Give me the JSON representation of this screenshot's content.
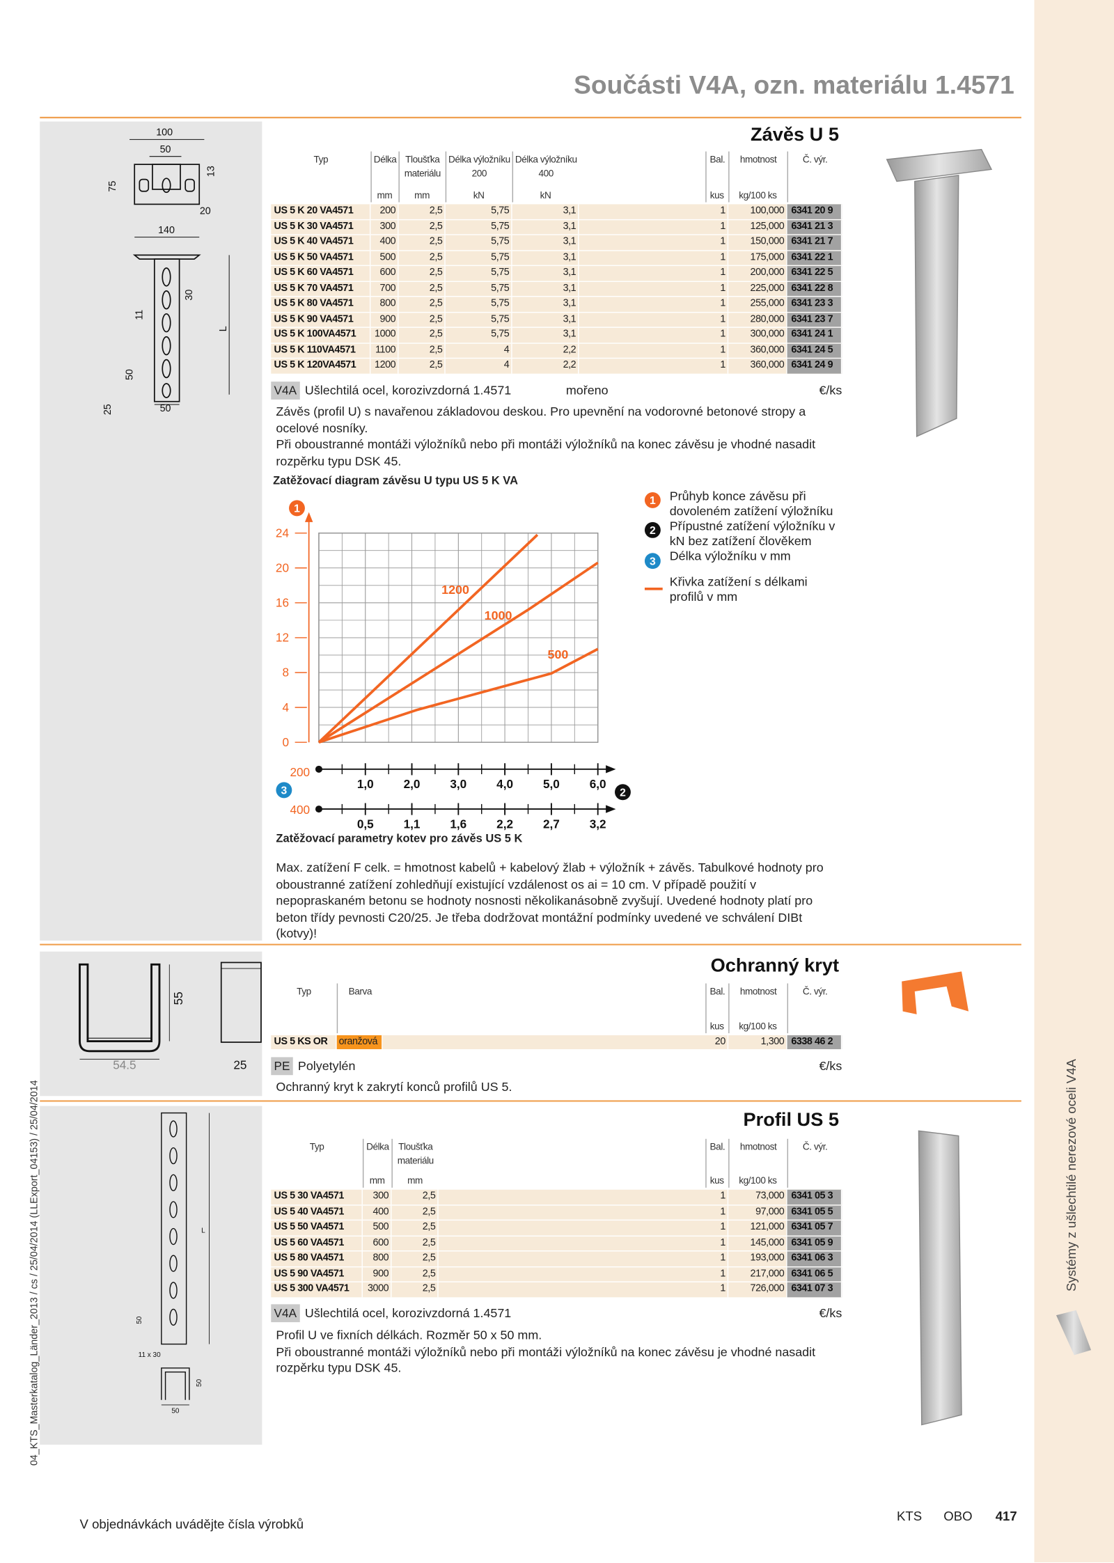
{
  "header": {
    "title": "Součásti V4A, ozn. materiálu 1.4571"
  },
  "sections": [
    {
      "title": "Závěs U 5",
      "table": {
        "headers": [
          "Typ",
          "Délka",
          "Tloušťka materiálu",
          "Délka výložníku 200",
          "Délka výložníku 400",
          "Bal.",
          "hmotnost",
          "Č. výr."
        ],
        "units": [
          null,
          "mm",
          "mm",
          "kN",
          "kN",
          "kus",
          "kg/100 ks",
          null
        ],
        "rows": [
          [
            "US 5 K 20 VA4571",
            "200",
            "2,5",
            "5,75",
            "3,1",
            "1",
            "100,000",
            "6341 20 9"
          ],
          [
            "US 5 K 30 VA4571",
            "300",
            "2,5",
            "5,75",
            "3,1",
            "1",
            "125,000",
            "6341 21 3"
          ],
          [
            "US 5 K 40 VA4571",
            "400",
            "2,5",
            "5,75",
            "3,1",
            "1",
            "150,000",
            "6341 21 7"
          ],
          [
            "US 5 K 50 VA4571",
            "500",
            "2,5",
            "5,75",
            "3,1",
            "1",
            "175,000",
            "6341 22 1"
          ],
          [
            "US 5 K 60 VA4571",
            "600",
            "2,5",
            "5,75",
            "3,1",
            "1",
            "200,000",
            "6341 22 5"
          ],
          [
            "US 5 K 70 VA4571",
            "700",
            "2,5",
            "5,75",
            "3,1",
            "1",
            "225,000",
            "6341 22 8"
          ],
          [
            "US 5 K 80 VA4571",
            "800",
            "2,5",
            "5,75",
            "3,1",
            "1",
            "255,000",
            "6341 23 3"
          ],
          [
            "US 5 K 90 VA4571",
            "900",
            "2,5",
            "5,75",
            "3,1",
            "1",
            "280,000",
            "6341 23 7"
          ],
          [
            "US 5 K 100VA4571",
            "1000",
            "2,5",
            "5,75",
            "3,1",
            "1",
            "300,000",
            "6341 24 1"
          ],
          [
            "US 5 K 110VA4571",
            "1100",
            "2,5",
            "4",
            "2,2",
            "1",
            "360,000",
            "6341 24 5"
          ],
          [
            "US 5 K 120VA4571",
            "1200",
            "2,5",
            "4",
            "2,2",
            "1",
            "360,000",
            "6341 24 9"
          ]
        ]
      },
      "material": {
        "code": "V4A",
        "text": "Ušlechtilá ocel, korozivzdorná 1.4571",
        "finish": "mořeno",
        "unit": "€/ks"
      },
      "description": [
        "Závěs (profil U) s navařenou základovou deskou. Pro upevnění na vodorovné betonové stropy a ocelové nosníky.",
        "Při oboustranné montáži výložníků nebo při montáži výložníků na konec závěsu je vhodné nasadit rozpěrku typu DSK 45."
      ],
      "diagram": {
        "type": "line",
        "title": "Zatěžovací diagram závěsu U typu US 5 K VA",
        "caption": "Zatěžovací parametry kotev pro závěs US 5 K",
        "markers": [
          "1",
          "2",
          "3"
        ],
        "legend": [
          "Průhyb konce závěsu při dovoleném zatížení výložníku",
          "Přípustné zatížení výložníku v kN bez zatížení člověkem",
          "Délka výložníku v mm",
          "Křivka zatížení s délkami profilů v mm"
        ],
        "ylim": [
          0,
          24
        ],
        "yticks": [
          0,
          4,
          8,
          12,
          16,
          20,
          24
        ],
        "xlim": [
          0,
          6
        ],
        "xticks": [
          {
            "value": 1,
            "label": "1,0"
          },
          {
            "value": 2,
            "label": "2,0"
          },
          {
            "value": 3,
            "label": "3,0"
          },
          {
            "value": 4,
            "label": "4,0"
          },
          {
            "value": 5,
            "label": "5,0"
          },
          {
            "value": 6,
            "label": "6,0"
          }
        ],
        "x_axis_labels": [
          "200",
          "400"
        ],
        "x2ticks": [
          {
            "value": 0.5,
            "label": "0,5"
          },
          {
            "value": 1.1,
            "label": "1,1"
          },
          {
            "value": 1.6,
            "label": "1,6"
          },
          {
            "value": 2.2,
            "label": "2,2"
          },
          {
            "value": 2.7,
            "label": "2,7"
          },
          {
            "value": 3.2,
            "label": "3,2"
          }
        ],
        "color": "#f26522",
        "grid": true,
        "series": [
          {
            "name": "1200",
            "x": [
              0,
              4.7
            ],
            "values": [
              0,
              23.8
            ]
          },
          {
            "name": "1000",
            "x": [
              0,
              4.5,
              6
            ],
            "values": [
              0,
              15.2,
              20.6
            ]
          },
          {
            "name": "500",
            "x": [
              0,
              2.1,
              5,
              6
            ],
            "values": [
              0,
              3.7,
              7.9,
              10.7
            ]
          }
        ]
      },
      "notes": "Max. zatížení F celk. = hmotnost kabelů + kabelový žlab + výložník + závěs. Tabulkové hodnoty pro oboustranné zatížení zohledňují existující vzdálenost os ai = 10 cm. V případě použití v nepopraskaném betonu se hodnoty nosnosti několikanásobně zvyšují. Uvedené hodnoty platí pro beton třídy pevnosti C20/25. Je třeba dodržovat montážní podmínky uvedené ve schválení DIBt (kotvy)!",
      "drawing_labels": [
        "100",
        "50",
        "75",
        "13",
        "20",
        "140",
        "30",
        "11",
        "L",
        "50",
        "25",
        "50"
      ]
    },
    {
      "title": "Ochranný kryt",
      "table": {
        "headers": [
          "Typ",
          "Barva",
          "Bal.",
          "hmotnost",
          "Č. výr."
        ],
        "units": [
          null,
          null,
          "kus",
          "kg/100 ks",
          null
        ],
        "rows": [
          [
            "US 5 KS OR",
            "oranžová",
            "20",
            "1,300",
            "6338 46 2"
          ]
        ]
      },
      "material": {
        "code": "PE",
        "text": "Polyetylén",
        "unit": "€/ks"
      },
      "description": [
        "Ochranný kryt k zakrytí konců profilů US 5."
      ],
      "drawing_labels": [
        "55",
        "54.5",
        "25"
      ]
    },
    {
      "title": "Profil US 5",
      "table": {
        "headers": [
          "Typ",
          "Délka",
          "Tloušťka materiálu",
          "Bal.",
          "hmotnost",
          "Č. výr."
        ],
        "units": [
          null,
          "mm",
          "mm",
          "kus",
          "kg/100 ks",
          null
        ],
        "rows": [
          [
            "US 5 30 VA4571",
            "300",
            "2,5",
            "1",
            "73,000",
            "6341 05 3"
          ],
          [
            "US 5 40 VA4571",
            "400",
            "2,5",
            "1",
            "97,000",
            "6341 05 5"
          ],
          [
            "US 5 50 VA4571",
            "500",
            "2,5",
            "1",
            "121,000",
            "6341 05 7"
          ],
          [
            "US 5 60 VA4571",
            "600",
            "2,5",
            "1",
            "145,000",
            "6341 05 9"
          ],
          [
            "US 5 80 VA4571",
            "800",
            "2,5",
            "1",
            "193,000",
            "6341 06 3"
          ],
          [
            "US 5 90 VA4571",
            "900",
            "2,5",
            "1",
            "217,000",
            "6341 06 5"
          ],
          [
            "US 5 300 VA4571",
            "3000",
            "2,5",
            "1",
            "726,000",
            "6341 07 3"
          ]
        ]
      },
      "material": {
        "code": "V4A",
        "text": "Ušlechtilá ocel, korozivzdorná 1.4571",
        "unit": "€/ks"
      },
      "description": [
        "Profil U ve fixních délkách. Rozměr 50 x 50 mm.",
        "Při oboustranné montáži výložníků nebo při montáži výložníků na konec závěsu je vhodné nasadit rozpěrku typu DSK 45."
      ],
      "drawing_labels": [
        "L",
        "50",
        "11 x 30",
        "50",
        "50"
      ]
    }
  ],
  "side_text": "Systémy z ušlechtilé nerezové oceli V4A",
  "print_info": "04_KTS_Masterkatalog_Länder_2013 / cs / 25/04/2014 (LLExport_04153) / 25/04/2014",
  "footer": {
    "order_note": "V objednávkách uvádějte čísla výrobků",
    "brand": [
      "KTS",
      "OBO"
    ],
    "page": "417"
  }
}
